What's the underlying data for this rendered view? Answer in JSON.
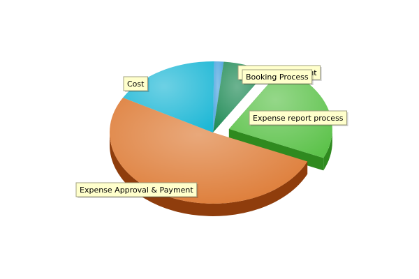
{
  "chart_data": {
    "type": "pie",
    "title": "",
    "slices": [
      {
        "label": "Policy Management",
        "value": 1.5,
        "color": "#4aa3df",
        "side": "#2b6f9e"
      },
      {
        "label": "Booking Process",
        "value": 7.0,
        "color": "#1e8a55",
        "side": "#0d4d2d"
      },
      {
        "label": "Expense report process",
        "value": 23.0,
        "color": "#5cc24a",
        "side": "#2f8a1f"
      },
      {
        "label": "Expense Approval & Payment",
        "value": 51.5,
        "color": "#dd7a34",
        "side": "#8f3d0c"
      },
      {
        "label": "Cost",
        "value": 17.0,
        "color": "#1fb8d6",
        "side": "#0f7f96"
      }
    ],
    "exploded": "Expense report process",
    "style": "3d",
    "legend": "none"
  }
}
